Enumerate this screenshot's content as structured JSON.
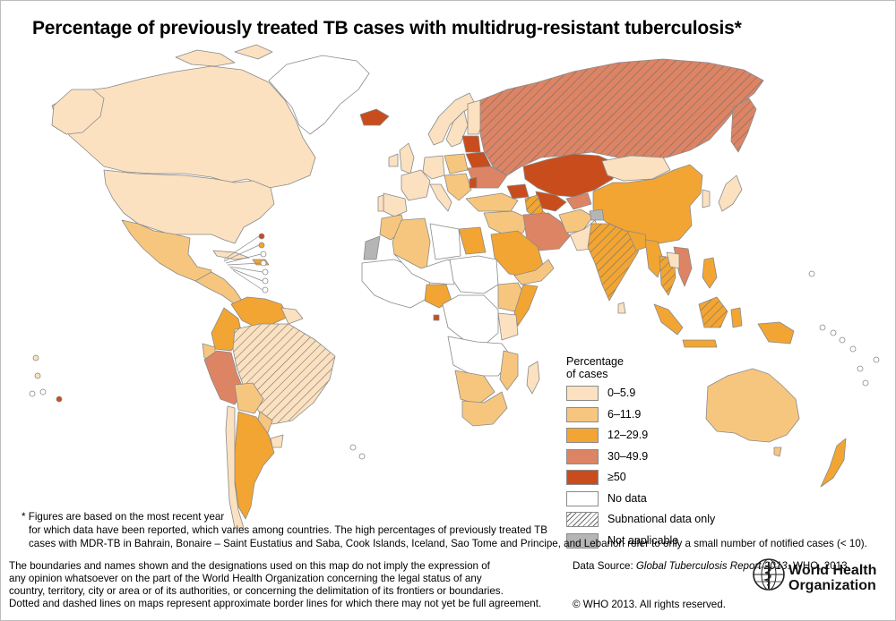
{
  "title": "Percentage of previously treated TB cases with multidrug-resistant tuberculosis*",
  "legend": {
    "heading_line1": "Percentage",
    "heading_line2": "of cases",
    "items": [
      {
        "label": "0–5.9",
        "color": "#fbe1c0"
      },
      {
        "label": "6–11.9",
        "color": "#f7c67e"
      },
      {
        "label": "12–29.9",
        "color": "#f2a533"
      },
      {
        "label": "30–49.9",
        "color": "#dd8464"
      },
      {
        "label": "≥50",
        "color": "#c94d1c"
      },
      {
        "label": "No data",
        "color": "#ffffff"
      },
      {
        "label": "Subnational data only",
        "color": "hatch"
      },
      {
        "label": "Not applicable",
        "color": "#b5b5b5"
      }
    ]
  },
  "footnote": {
    "line1": "* Figures are based on the most recent year",
    "line2": "for which data have been reported, which varies among countries.  The high percentages of previously treated TB",
    "line3": "cases with MDR-TB in Bahrain, Bonaire – Saint Eustatius and Saba, Cook Islands, Iceland, Sao Tome and Principe, and Lebanon refer to only a small number of notified cases (< 10)."
  },
  "disclaimer": [
    "The boundaries and names shown and the designations used on this map do not imply the expression of",
    "any opinion whatsoever on the part of the World Health Organization concerning the legal status of any",
    "country, territory, city or area or of its authorities, or concerning the delimitation of its frontiers or boundaries.",
    "Dotted and dashed lines on maps represent approximate border lines for which there may not yet be full agreement."
  ],
  "source": {
    "prefix": "Data Source: ",
    "publication": "Global Tuberculosis Report 2013",
    "suffix": ". WHO, 2013."
  },
  "copyright": "© WHO 2013. All rights reserved.",
  "organization": {
    "line1": "World Health",
    "line2": "Organization"
  },
  "colors": {
    "border": "#8a8a8a",
    "hatch_line": "#6b6b6b"
  }
}
